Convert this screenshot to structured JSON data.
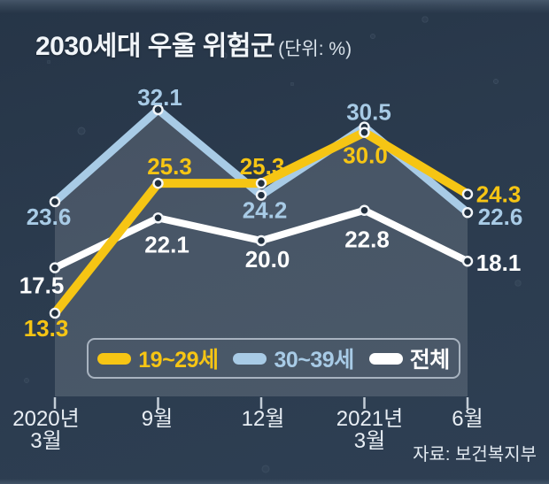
{
  "header": {
    "title": "2030세대 우울 위험군",
    "unit": "(단위: %)"
  },
  "source": "자료: 보건복지부",
  "colors": {
    "background": "#2b3b4e",
    "accent_yellow": "#f6c514",
    "accent_blue": "#a8cbe6",
    "accent_white": "#ffffff",
    "marker_fill": "#22303f",
    "marker_stroke": "#f3f6f9",
    "area_fill": "rgba(255,255,255,0.14)",
    "tick": "#c3cdd7"
  },
  "chart_data": {
    "type": "line",
    "title": "2030세대 우울 위험군",
    "unit_label": "(단위: %)",
    "categories": [
      "2020년\n3월",
      "9월",
      "12월",
      "2021년\n3월",
      "6월"
    ],
    "series": [
      {
        "name": "19~29세",
        "color": "#f6c514",
        "values": [
          13.3,
          25.3,
          25.3,
          30.0,
          24.3
        ]
      },
      {
        "name": "30~39세",
        "color": "#a8cbe6",
        "values": [
          23.6,
          32.1,
          24.2,
          30.5,
          22.6
        ]
      },
      {
        "name": "전체",
        "color": "#ffffff",
        "values": [
          17.5,
          22.1,
          20.0,
          22.8,
          18.1
        ]
      }
    ],
    "ylim": [
      5.6,
      34.5
    ],
    "grid": false,
    "legend_position": "bottom-inside",
    "area_fill_under_series": "30~39세",
    "source": "자료: 보건복지부"
  }
}
